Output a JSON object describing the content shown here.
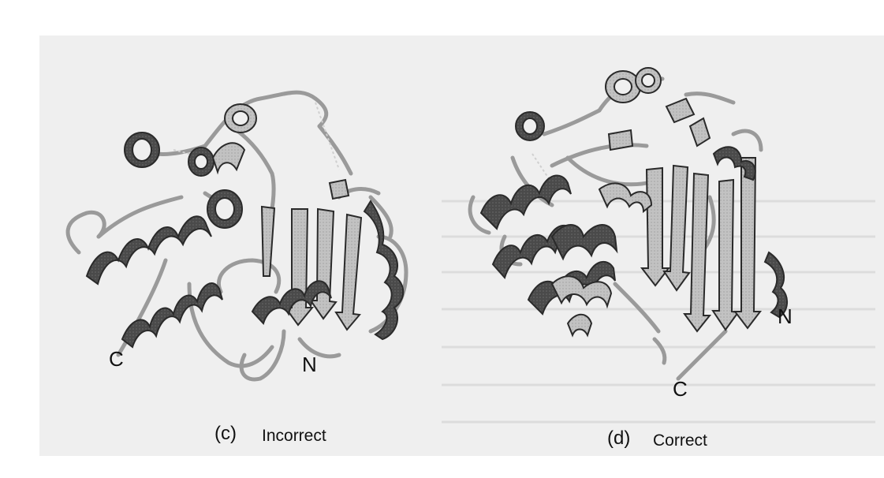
{
  "panels": [
    {
      "tag": "(c)",
      "caption": "Incorrect",
      "terminus_labels": {
        "c": "C",
        "n": "N"
      }
    },
    {
      "tag": "(d)",
      "caption": "Correct",
      "terminus_labels": {
        "c": "C",
        "n": "N"
      }
    }
  ],
  "colors": {
    "page": "#ffffff",
    "scan_background": "#efefef",
    "helix_dark": "#4a4a4a",
    "sheet_light": "#bdbdbd",
    "coil": "#9a9a9a",
    "outline": "#2a2a2a"
  },
  "icons": [
    "protein-ribbon-incorrect",
    "protein-ribbon-correct"
  ]
}
